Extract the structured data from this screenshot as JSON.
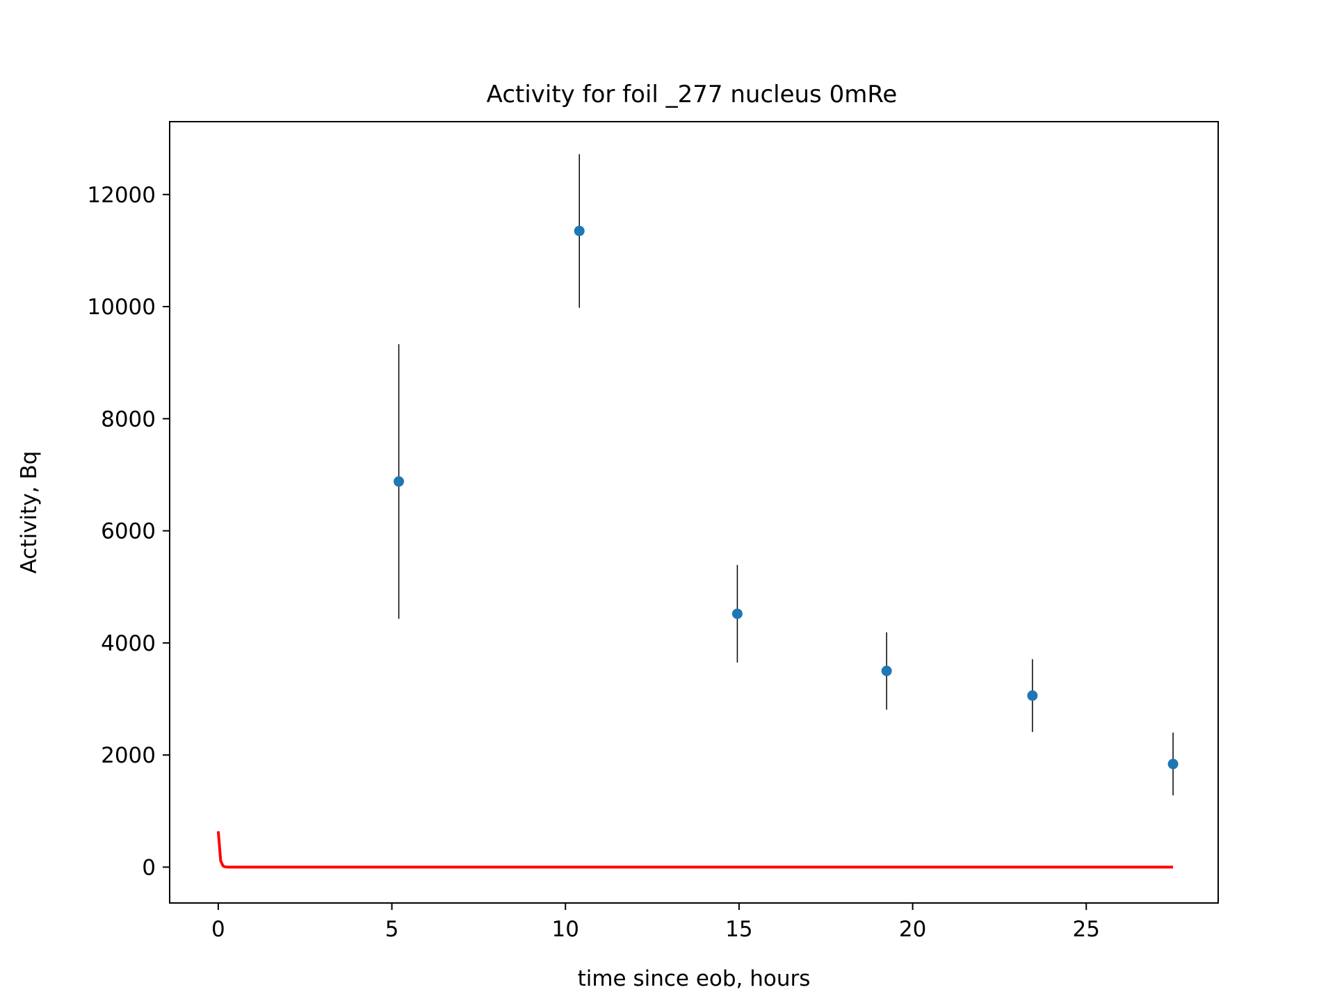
{
  "chart_data": {
    "type": "scatter",
    "title": "Activity for foil _277 nucleus 0mRe",
    "xlabel": "time since eob, hours",
    "ylabel": "Activity, Bq",
    "xlim": [
      -1.4,
      28.8
    ],
    "ylim": [
      -640,
      13300
    ],
    "xticks": [
      0,
      5,
      10,
      15,
      20,
      25
    ],
    "yticks": [
      0,
      2000,
      4000,
      6000,
      8000,
      10000,
      12000
    ],
    "grid": false,
    "series": [
      {
        "type": "errorbar",
        "color": "#1f77b4",
        "error_color": "#000000",
        "points": [
          {
            "x": 5.2,
            "y": 6880,
            "err": 2450
          },
          {
            "x": 10.4,
            "y": 11350,
            "err": 1370
          },
          {
            "x": 14.95,
            "y": 4520,
            "err": 870
          },
          {
            "x": 19.25,
            "y": 3500,
            "err": 690
          },
          {
            "x": 23.45,
            "y": 3060,
            "err": 650
          },
          {
            "x": 27.5,
            "y": 1840,
            "err": 560
          }
        ]
      },
      {
        "type": "line",
        "color": "#ff0000",
        "curve": "exponential-decay",
        "x_start": 0,
        "x_end": 27.5,
        "y0": 640,
        "decay_rate_per_hour": 25
      }
    ]
  }
}
